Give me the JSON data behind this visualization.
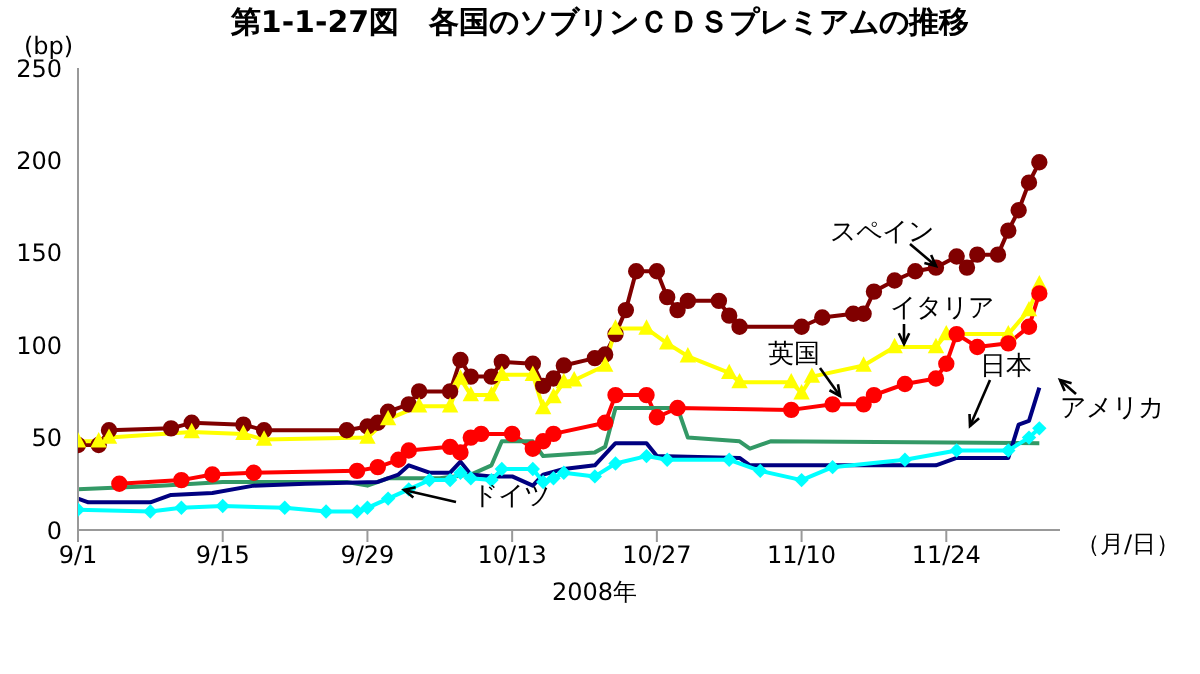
{
  "chart_data": {
    "type": "line",
    "title": "第1-1-27図　各国のソブリンＣＤＳプレミアムの推移",
    "ylabel": "(bp)",
    "xlabel": "2008年",
    "annotations": [
      "（月/日）"
    ],
    "xlim": [
      "2008-09-01",
      "2008-12-05"
    ],
    "xticks": [
      {
        "value": "2008-09-01",
        "label": "9/1"
      },
      {
        "value": "2008-09-15",
        "label": "9/15"
      },
      {
        "value": "2008-09-29",
        "label": "9/29"
      },
      {
        "value": "2008-10-13",
        "label": "10/13"
      },
      {
        "value": "2008-10-27",
        "label": "10/27"
      },
      {
        "value": "2008-11-10",
        "label": "11/10"
      },
      {
        "value": "2008-11-24",
        "label": "11/24"
      }
    ],
    "ylim": [
      0,
      250
    ],
    "yticks": [
      0,
      50,
      100,
      150,
      200,
      250
    ],
    "grid": false,
    "series": [
      {
        "name": "スペイン",
        "color": "#800000",
        "marker": "circle",
        "x": [
          "2008-09-01",
          "2008-09-03",
          "2008-09-04",
          "2008-09-10",
          "2008-09-12",
          "2008-09-17",
          "2008-09-19",
          "2008-09-27",
          "2008-09-29",
          "2008-09-30",
          "2008-10-01",
          "2008-10-03",
          "2008-10-04",
          "2008-10-07",
          "2008-10-08",
          "2008-10-09",
          "2008-10-11",
          "2008-10-12",
          "2008-10-15",
          "2008-10-16",
          "2008-10-17",
          "2008-10-18",
          "2008-10-21",
          "2008-10-22",
          "2008-10-23",
          "2008-10-24",
          "2008-10-25",
          "2008-10-27",
          "2008-10-28",
          "2008-10-29",
          "2008-10-30",
          "2008-11-02",
          "2008-11-03",
          "2008-11-04",
          "2008-11-10",
          "2008-11-12",
          "2008-11-15",
          "2008-11-16",
          "2008-11-17",
          "2008-11-19",
          "2008-11-21",
          "2008-11-23",
          "2008-11-25",
          "2008-11-26",
          "2008-11-27",
          "2008-11-29",
          "2008-11-30",
          "2008-12-01",
          "2008-12-02",
          "2008-12-03"
        ],
        "values": [
          46,
          46,
          54,
          55,
          58,
          57,
          54,
          54,
          56,
          58,
          64,
          68,
          75,
          75,
          92,
          83,
          83,
          91,
          90,
          78,
          82,
          89,
          93,
          95,
          106,
          119,
          140,
          140,
          126,
          119,
          124,
          124,
          116,
          110,
          110,
          115,
          117,
          117,
          129,
          135,
          140,
          142,
          148,
          142,
          149,
          149,
          162,
          173,
          188,
          199
        ]
      },
      {
        "name": "イタリア",
        "color": "#ffff00",
        "marker": "triangle",
        "x": [
          "2008-09-01",
          "2008-09-03",
          "2008-09-04",
          "2008-09-12",
          "2008-09-17",
          "2008-09-19",
          "2008-09-29",
          "2008-10-01",
          "2008-10-04",
          "2008-10-07",
          "2008-10-08",
          "2008-10-09",
          "2008-10-11",
          "2008-10-12",
          "2008-10-15",
          "2008-10-16",
          "2008-10-17",
          "2008-10-18",
          "2008-10-19",
          "2008-10-22",
          "2008-10-23",
          "2008-10-26",
          "2008-10-28",
          "2008-10-30",
          "2008-11-03",
          "2008-11-04",
          "2008-11-09",
          "2008-11-10",
          "2008-11-11",
          "2008-11-16",
          "2008-11-19",
          "2008-11-23",
          "2008-11-24",
          "2008-11-30",
          "2008-12-02",
          "2008-12-03"
        ],
        "values": [
          48,
          48,
          50,
          53,
          52,
          49,
          50,
          60,
          67,
          67,
          82,
          73,
          73,
          84,
          84,
          66,
          72,
          80,
          81,
          89,
          109,
          109,
          101,
          94,
          85,
          80,
          80,
          74,
          83,
          89,
          99,
          99,
          106,
          106,
          119,
          133
        ]
      },
      {
        "name": "英国",
        "color": "#ff0000",
        "marker": "circle",
        "x": [
          "2008-09-05",
          "2008-09-11",
          "2008-09-14",
          "2008-09-18",
          "2008-09-28",
          "2008-09-30",
          "2008-10-02",
          "2008-10-03",
          "2008-10-07",
          "2008-10-08",
          "2008-10-09",
          "2008-10-10",
          "2008-10-13",
          "2008-10-15",
          "2008-10-16",
          "2008-10-17",
          "2008-10-22",
          "2008-10-23",
          "2008-10-26",
          "2008-10-27",
          "2008-10-29",
          "2008-11-09",
          "2008-11-13",
          "2008-11-16",
          "2008-11-17",
          "2008-11-20",
          "2008-11-23",
          "2008-11-24",
          "2008-11-25",
          "2008-11-27",
          "2008-11-30",
          "2008-12-02",
          "2008-12-03"
        ],
        "values": [
          25,
          27,
          30,
          31,
          32,
          34,
          38,
          43,
          45,
          42,
          50,
          52,
          52,
          44,
          48,
          52,
          58,
          73,
          73,
          61,
          66,
          65,
          68,
          68,
          73,
          79,
          82,
          90,
          106,
          99,
          101,
          110,
          128
        ]
      },
      {
        "name": "日本",
        "color": "#339966",
        "marker": "none",
        "x": [
          "2008-09-01",
          "2008-09-09",
          "2008-09-15",
          "2008-09-27",
          "2008-09-29",
          "2008-10-01",
          "2008-10-06",
          "2008-10-09",
          "2008-10-11",
          "2008-10-12",
          "2008-10-15",
          "2008-10-16",
          "2008-10-21",
          "2008-10-22",
          "2008-10-23",
          "2008-10-29",
          "2008-10-30",
          "2008-11-04",
          "2008-11-05",
          "2008-11-07",
          "2008-12-03"
        ],
        "values": [
          22,
          24,
          26,
          26,
          24,
          28,
          28,
          30,
          35,
          48,
          48,
          40,
          42,
          45,
          66,
          66,
          50,
          48,
          44,
          48,
          47
        ]
      },
      {
        "name": "アメリカ",
        "color": "#000080",
        "marker": "none",
        "x": [
          "2008-09-01",
          "2008-09-02",
          "2008-09-08",
          "2008-09-10",
          "2008-09-14",
          "2008-09-18",
          "2008-09-23",
          "2008-09-30",
          "2008-10-02",
          "2008-10-03",
          "2008-10-05",
          "2008-10-07",
          "2008-10-08",
          "2008-10-09",
          "2008-10-11",
          "2008-10-13",
          "2008-10-15",
          "2008-10-16",
          "2008-10-18",
          "2008-10-21",
          "2008-10-23",
          "2008-10-26",
          "2008-10-27",
          "2008-11-04",
          "2008-11-05",
          "2008-11-23",
          "2008-11-25",
          "2008-11-30",
          "2008-12-01",
          "2008-12-02",
          "2008-12-03"
        ],
        "values": [
          17,
          15,
          15,
          19,
          20,
          24,
          25,
          26,
          30,
          35,
          31,
          31,
          37,
          30,
          29,
          29,
          24,
          30,
          33,
          35,
          47,
          47,
          40,
          39,
          35,
          35,
          39,
          39,
          57,
          59,
          77
        ]
      },
      {
        "name": "ドイツ",
        "color": "#00ffff",
        "marker": "diamond",
        "x": [
          "2008-09-01",
          "2008-09-08",
          "2008-09-11",
          "2008-09-15",
          "2008-09-21",
          "2008-09-25",
          "2008-09-28",
          "2008-09-29",
          "2008-10-01",
          "2008-10-03",
          "2008-10-05",
          "2008-10-07",
          "2008-10-08",
          "2008-10-09",
          "2008-10-11",
          "2008-10-12",
          "2008-10-15",
          "2008-10-16",
          "2008-10-17",
          "2008-10-18",
          "2008-10-21",
          "2008-10-23",
          "2008-10-26",
          "2008-10-28",
          "2008-11-03",
          "2008-11-06",
          "2008-11-10",
          "2008-11-13",
          "2008-11-20",
          "2008-11-25",
          "2008-11-30",
          "2008-12-02",
          "2008-12-03"
        ],
        "values": [
          11,
          10,
          12,
          13,
          12,
          10,
          10,
          12,
          17,
          22,
          27,
          27,
          31,
          28,
          27,
          33,
          33,
          26,
          28,
          31,
          29,
          36,
          40,
          38,
          38,
          32,
          27,
          34,
          38,
          43,
          43,
          50,
          55
        ]
      }
    ]
  }
}
